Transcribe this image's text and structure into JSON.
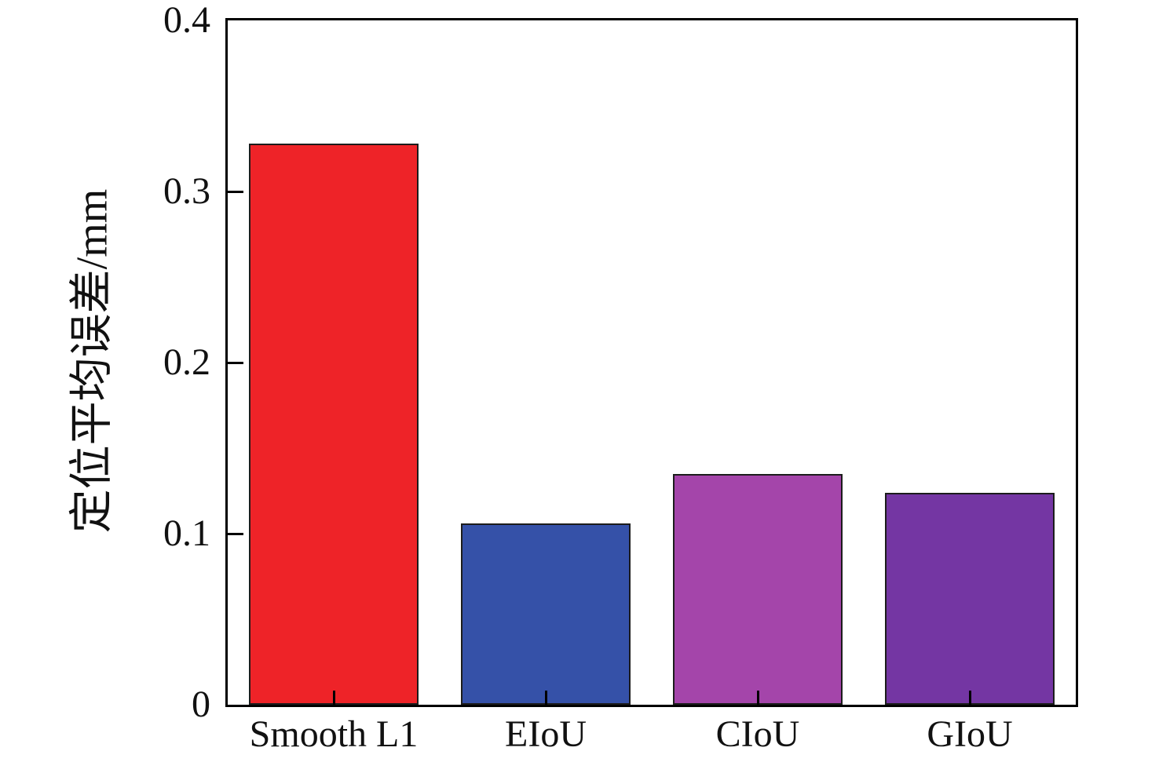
{
  "figure": {
    "background_color": "#ffffff",
    "text_color": "#111111",
    "axis_color": "#000000"
  },
  "chart_data": {
    "type": "bar",
    "title": "",
    "categories": [
      "Smooth L1",
      "EIoU",
      "CIoU",
      "GIoU"
    ],
    "values": [
      0.328,
      0.106,
      0.135,
      0.124
    ],
    "bar_colors": [
      "#ee2328",
      "#3551a8",
      "#a445aa",
      "#7436a3"
    ],
    "bar_edge_color": "#1c1c1c",
    "bar_width_fraction": 0.8,
    "xlabel": "",
    "ylabel": "定位平均误差/mm",
    "ylim": [
      0,
      0.4
    ],
    "yticks": [
      0,
      0.1,
      0.2,
      0.3,
      0.4
    ],
    "ytick_labels": [
      "0",
      "0.1",
      "0.2",
      "0.3",
      "0.4"
    ],
    "ytick_marks_drawn": [
      0.1,
      0.2,
      0.3
    ],
    "tick_direction": "in",
    "grid": false,
    "legend": null
  }
}
